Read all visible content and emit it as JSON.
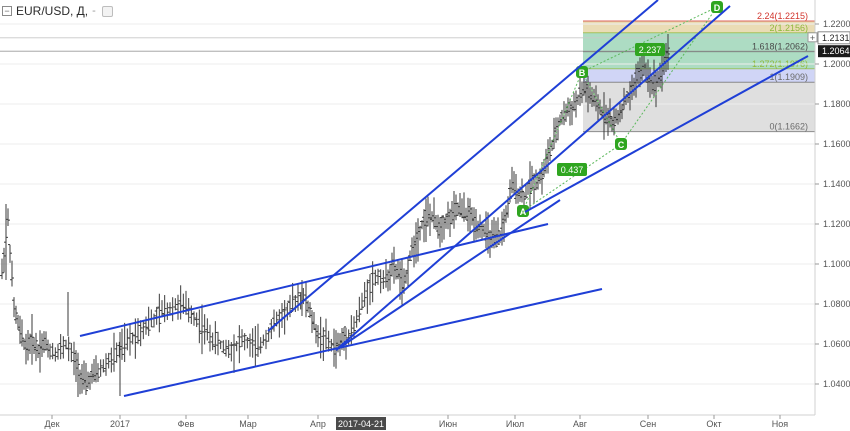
{
  "header": {
    "symbol_label": "EUR/USD, Д,",
    "collapse_icon": "minus-box-icon",
    "dash": "-",
    "settings_icon": "settings-box-icon"
  },
  "chart_data": {
    "type": "candlestick",
    "x_tick_labels": [
      "Дек",
      "2017",
      "Фев",
      "Мар",
      "Апр",
      "Июн",
      "Июл",
      "Авг",
      "Сен",
      "Окт",
      "Ноя"
    ],
    "date_badge": "2017-04-21",
    "y_ticks": [
      1.04,
      1.06,
      1.08,
      1.1,
      1.12,
      1.14,
      1.16,
      1.18,
      1.2,
      1.22
    ],
    "y_tick_labels": [
      "1.0400",
      "1.0600",
      "1.0800",
      "1.1000",
      "1.1200",
      "1.1400",
      "1.1600",
      "1.1800",
      "1.2000",
      "1.2200"
    ],
    "price_badges": [
      {
        "label": "1.2131",
        "value": 1.2131,
        "style": "light"
      },
      {
        "label": "1.2064",
        "value": 1.2064,
        "style": "dark"
      }
    ],
    "fib_levels": [
      {
        "label": "0(1.1662)",
        "value": 1.1662,
        "color": "#6b6b6b",
        "fill": "#d9d9d9"
      },
      {
        "label": "1(1.1909)",
        "value": 1.1909,
        "color": "#6b6b6b",
        "fill": "#c8cef4"
      },
      {
        "label": "1.272(1.1976)",
        "value": 1.1976,
        "color": "#8fb83c",
        "fill": "#9fd6b8"
      },
      {
        "label": "1.618(1.2062)",
        "value": 1.2062,
        "color": "#4a4a4a",
        "fill": "#9fd6b8"
      },
      {
        "label": "2(1.2156)",
        "value": 1.2156,
        "color": "#8fb83c",
        "fill": "#e6d6a8"
      },
      {
        "label": "2.24(1.2215)",
        "value": 1.2215,
        "color": "#d2342c",
        "fill": null
      }
    ],
    "pattern_points": [
      {
        "label": "A",
        "value": 1.1375
      },
      {
        "label": "B",
        "value": 1.1906
      },
      {
        "label": "C",
        "value": 1.1668
      },
      {
        "label": "D",
        "value": 1.2225
      }
    ],
    "ratio_labels": [
      {
        "label": "0.437",
        "value": 1.1505
      },
      {
        "label": "2.237",
        "value": 1.2065
      }
    ],
    "colors": {
      "trendline": "#1f3fd6",
      "pattern_line": "#5cb85c",
      "pattern_badge": "#2fa520",
      "candle": "#3a3a3a",
      "axis_text": "#555555"
    }
  }
}
